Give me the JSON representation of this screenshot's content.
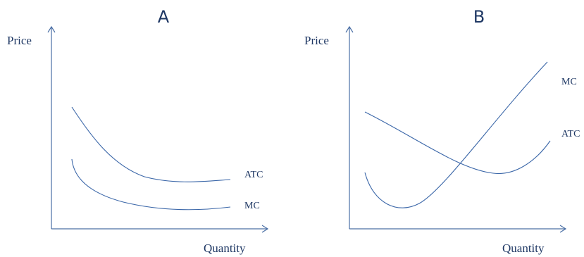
{
  "panels": [
    {
      "title": "A",
      "y_label": "Price",
      "x_label": "Quantity",
      "curves": [
        {
          "label": "ATC"
        },
        {
          "label": "MC"
        }
      ]
    },
    {
      "title": "B",
      "y_label": "Price",
      "x_label": "Quantity",
      "curves": [
        {
          "label": "MC"
        },
        {
          "label": "ATC"
        }
      ]
    }
  ],
  "colors": {
    "text": "#1F3864",
    "axis": "#4A6FA5",
    "curve": "#3A66A8"
  }
}
